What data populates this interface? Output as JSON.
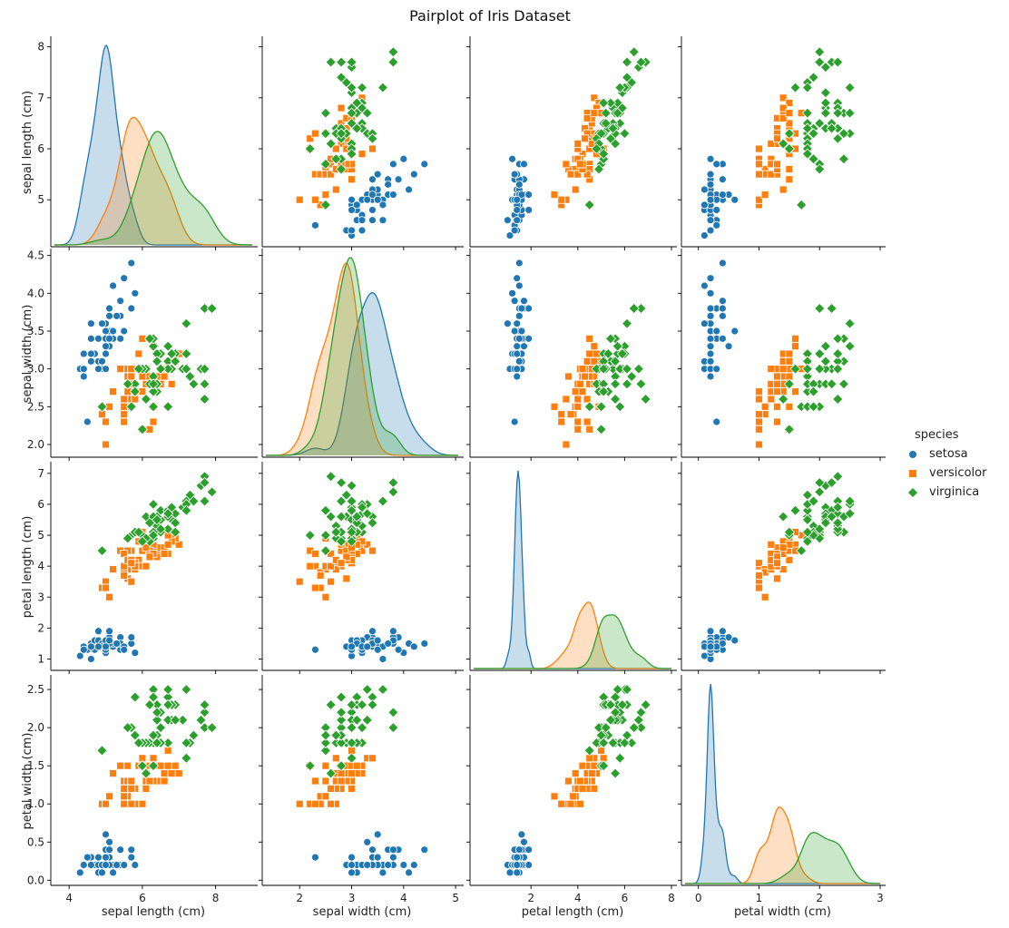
{
  "chart_data": {
    "type": "scatter",
    "variant": "pairplot",
    "title": "Pairplot of Iris Dataset",
    "hue": "species",
    "legend": {
      "title": "species",
      "position": "right",
      "entries": [
        {
          "label": "setosa",
          "color": "#1f77b4",
          "marker": "circle"
        },
        {
          "label": "versicolor",
          "color": "#ff7f0e",
          "marker": "square"
        },
        {
          "label": "virginica",
          "color": "#2ca02c",
          "marker": "diamond"
        }
      ]
    },
    "variables": [
      {
        "key": "sl",
        "label": "sepal length (cm)",
        "range": [
          3.6,
          9.0
        ],
        "ticks": [
          "4",
          "6",
          "8"
        ],
        "row_range": [
          4.15,
          8.1
        ],
        "row_ticks": [
          "5",
          "6",
          "7",
          "8"
        ]
      },
      {
        "key": "sw",
        "label": "sepal width (cm)",
        "range": [
          1.35,
          5.05
        ],
        "ticks": [
          "2",
          "3",
          "4",
          "5"
        ],
        "row_range": [
          1.88,
          4.52
        ],
        "row_ticks": [
          "2.0",
          "2.5",
          "3.0",
          "3.5",
          "4.0",
          "4.5"
        ]
      },
      {
        "key": "pl",
        "label": "petal length (cm)",
        "range": [
          -0.45,
          8.0
        ],
        "ticks": [
          "2",
          "4",
          "6",
          "8"
        ],
        "row_range": [
          0.75,
          7.2
        ],
        "row_ticks": [
          "1",
          "2",
          "3",
          "4",
          "5",
          "6",
          "7"
        ]
      },
      {
        "key": "pw",
        "label": "petal width (cm)",
        "range": [
          -0.22,
          3.0
        ],
        "ticks": [
          "0",
          "1",
          "2",
          "3"
        ],
        "row_range": [
          -0.02,
          2.62
        ],
        "row_ticks": [
          "0.0",
          "0.5",
          "1.0",
          "1.5",
          "2.0",
          "2.5"
        ]
      }
    ],
    "species": [
      {
        "name": "setosa",
        "color": "#1f77b4",
        "marker": "circle",
        "sl": [
          5.1,
          4.9,
          4.7,
          4.6,
          5.0,
          5.4,
          4.6,
          5.0,
          4.4,
          4.9,
          5.4,
          4.8,
          4.8,
          4.3,
          5.8,
          5.7,
          5.4,
          5.1,
          5.7,
          5.1,
          5.4,
          5.1,
          4.6,
          5.1,
          4.8,
          5.0,
          5.0,
          5.2,
          5.2,
          4.7,
          4.8,
          5.4,
          5.2,
          5.5,
          4.9,
          5.0,
          5.5,
          4.9,
          4.4,
          5.1,
          5.0,
          4.5,
          4.4,
          5.0,
          5.1,
          4.8,
          5.1,
          4.6,
          5.3,
          5.0
        ],
        "sw": [
          3.5,
          3.0,
          3.2,
          3.1,
          3.6,
          3.9,
          3.4,
          3.4,
          2.9,
          3.1,
          3.7,
          3.4,
          3.0,
          3.0,
          4.0,
          4.4,
          3.9,
          3.5,
          3.8,
          3.8,
          3.4,
          3.7,
          3.6,
          3.3,
          3.4,
          3.0,
          3.4,
          3.5,
          3.4,
          3.2,
          3.1,
          3.4,
          4.1,
          4.2,
          3.1,
          3.2,
          3.5,
          3.6,
          3.0,
          3.4,
          3.5,
          2.3,
          3.2,
          3.5,
          3.8,
          3.0,
          3.8,
          3.2,
          3.7,
          3.3
        ],
        "pl": [
          1.4,
          1.4,
          1.3,
          1.5,
          1.4,
          1.7,
          1.4,
          1.5,
          1.4,
          1.5,
          1.5,
          1.6,
          1.4,
          1.1,
          1.2,
          1.5,
          1.3,
          1.4,
          1.7,
          1.5,
          1.7,
          1.5,
          1.0,
          1.7,
          1.9,
          1.6,
          1.6,
          1.5,
          1.4,
          1.6,
          1.6,
          1.5,
          1.5,
          1.4,
          1.5,
          1.2,
          1.3,
          1.4,
          1.3,
          1.5,
          1.3,
          1.3,
          1.3,
          1.6,
          1.9,
          1.4,
          1.6,
          1.4,
          1.5,
          1.4
        ],
        "pw": [
          0.2,
          0.2,
          0.2,
          0.2,
          0.2,
          0.4,
          0.3,
          0.2,
          0.2,
          0.1,
          0.2,
          0.2,
          0.1,
          0.1,
          0.2,
          0.4,
          0.4,
          0.3,
          0.3,
          0.3,
          0.2,
          0.4,
          0.2,
          0.5,
          0.2,
          0.2,
          0.4,
          0.2,
          0.2,
          0.2,
          0.2,
          0.4,
          0.1,
          0.2,
          0.2,
          0.2,
          0.2,
          0.1,
          0.2,
          0.2,
          0.3,
          0.3,
          0.2,
          0.6,
          0.4,
          0.3,
          0.2,
          0.2,
          0.2,
          0.2
        ]
      },
      {
        "name": "versicolor",
        "color": "#ff7f0e",
        "marker": "square",
        "sl": [
          7.0,
          6.4,
          6.9,
          5.5,
          6.5,
          5.7,
          6.3,
          4.9,
          6.6,
          5.2,
          5.0,
          5.9,
          6.0,
          6.1,
          5.6,
          6.7,
          5.6,
          5.8,
          6.2,
          5.6,
          5.9,
          6.1,
          6.3,
          6.1,
          6.4,
          6.6,
          6.8,
          6.7,
          6.0,
          5.7,
          5.5,
          5.5,
          5.8,
          6.0,
          5.4,
          6.0,
          6.7,
          6.3,
          5.6,
          5.5,
          5.5,
          6.1,
          5.8,
          5.0,
          5.6,
          5.7,
          5.7,
          6.2,
          5.1,
          5.7
        ],
        "sw": [
          3.2,
          3.2,
          3.1,
          2.3,
          2.8,
          2.8,
          3.3,
          2.4,
          2.9,
          2.7,
          2.0,
          3.0,
          2.2,
          2.9,
          2.9,
          3.1,
          3.0,
          2.7,
          2.2,
          2.5,
          3.2,
          2.8,
          2.5,
          2.8,
          2.9,
          3.0,
          2.8,
          3.0,
          2.9,
          2.6,
          2.4,
          2.4,
          2.7,
          2.7,
          3.0,
          3.4,
          3.1,
          2.3,
          3.0,
          2.5,
          2.6,
          3.0,
          2.6,
          2.3,
          2.7,
          3.0,
          2.9,
          2.9,
          2.5,
          2.8
        ],
        "pl": [
          4.7,
          4.5,
          4.9,
          4.0,
          4.6,
          4.5,
          4.7,
          3.3,
          4.6,
          3.9,
          3.5,
          4.2,
          4.0,
          4.7,
          3.6,
          4.4,
          4.5,
          4.1,
          4.5,
          3.9,
          4.8,
          4.0,
          4.9,
          4.7,
          4.3,
          4.4,
          4.8,
          5.0,
          4.5,
          3.5,
          3.8,
          3.7,
          3.9,
          5.1,
          4.5,
          4.5,
          4.7,
          4.4,
          4.1,
          4.0,
          4.4,
          4.6,
          4.0,
          3.3,
          4.2,
          4.2,
          4.2,
          4.3,
          3.0,
          4.1
        ],
        "pw": [
          1.4,
          1.5,
          1.5,
          1.3,
          1.5,
          1.3,
          1.6,
          1.0,
          1.3,
          1.4,
          1.0,
          1.5,
          1.0,
          1.4,
          1.3,
          1.4,
          1.5,
          1.0,
          1.5,
          1.1,
          1.8,
          1.3,
          1.5,
          1.2,
          1.3,
          1.4,
          1.4,
          1.7,
          1.5,
          1.0,
          1.1,
          1.0,
          1.2,
          1.6,
          1.5,
          1.6,
          1.5,
          1.3,
          1.3,
          1.3,
          1.2,
          1.4,
          1.2,
          1.0,
          1.3,
          1.2,
          1.3,
          1.3,
          1.1,
          1.3
        ]
      },
      {
        "name": "virginica",
        "color": "#2ca02c",
        "marker": "diamond",
        "sl": [
          6.3,
          5.8,
          7.1,
          6.3,
          6.5,
          7.6,
          4.9,
          7.3,
          6.7,
          7.2,
          6.5,
          6.4,
          6.8,
          5.7,
          5.8,
          6.4,
          6.5,
          7.7,
          7.7,
          6.0,
          6.9,
          5.6,
          7.7,
          6.3,
          6.7,
          7.2,
          6.2,
          6.1,
          6.4,
          7.2,
          7.4,
          7.9,
          6.4,
          6.3,
          6.1,
          7.7,
          6.3,
          6.4,
          6.0,
          6.9,
          6.7,
          6.9,
          5.8,
          6.8,
          6.7,
          6.7,
          6.3,
          6.5,
          6.2,
          5.9
        ],
        "sw": [
          3.3,
          2.7,
          3.0,
          2.9,
          3.0,
          3.0,
          2.5,
          2.9,
          2.5,
          3.6,
          3.2,
          2.7,
          3.0,
          2.5,
          2.8,
          3.2,
          3.0,
          3.8,
          2.6,
          2.2,
          3.2,
          2.8,
          2.8,
          2.7,
          3.3,
          3.2,
          2.8,
          3.0,
          2.8,
          3.0,
          2.8,
          3.8,
          2.8,
          2.8,
          2.6,
          3.0,
          3.4,
          3.1,
          3.0,
          3.1,
          3.1,
          3.1,
          2.7,
          3.2,
          3.3,
          3.0,
          2.5,
          3.0,
          3.4,
          3.0
        ],
        "pl": [
          6.0,
          5.1,
          5.9,
          5.6,
          5.8,
          6.6,
          4.5,
          6.3,
          5.8,
          6.1,
          5.1,
          5.3,
          5.5,
          5.0,
          5.1,
          5.3,
          5.5,
          6.7,
          6.9,
          5.0,
          5.7,
          4.9,
          6.7,
          4.9,
          5.7,
          6.0,
          4.8,
          4.9,
          5.6,
          5.8,
          6.1,
          6.4,
          5.6,
          5.1,
          5.6,
          6.1,
          5.6,
          5.5,
          4.8,
          5.4,
          5.6,
          5.1,
          5.1,
          5.9,
          5.7,
          5.2,
          5.0,
          5.2,
          5.4,
          5.1
        ],
        "pw": [
          2.5,
          1.9,
          2.1,
          1.8,
          2.2,
          2.1,
          1.7,
          1.8,
          1.8,
          2.5,
          2.0,
          1.9,
          2.1,
          2.0,
          2.4,
          2.3,
          1.8,
          2.2,
          2.3,
          1.5,
          2.3,
          2.0,
          2.0,
          1.8,
          2.1,
          1.8,
          1.8,
          1.8,
          2.1,
          1.6,
          1.9,
          2.0,
          2.2,
          1.5,
          1.4,
          2.3,
          2.4,
          1.8,
          1.8,
          2.1,
          2.4,
          2.3,
          1.9,
          2.3,
          2.5,
          2.3,
          1.9,
          2.0,
          2.3,
          1.8
        ]
      }
    ]
  }
}
